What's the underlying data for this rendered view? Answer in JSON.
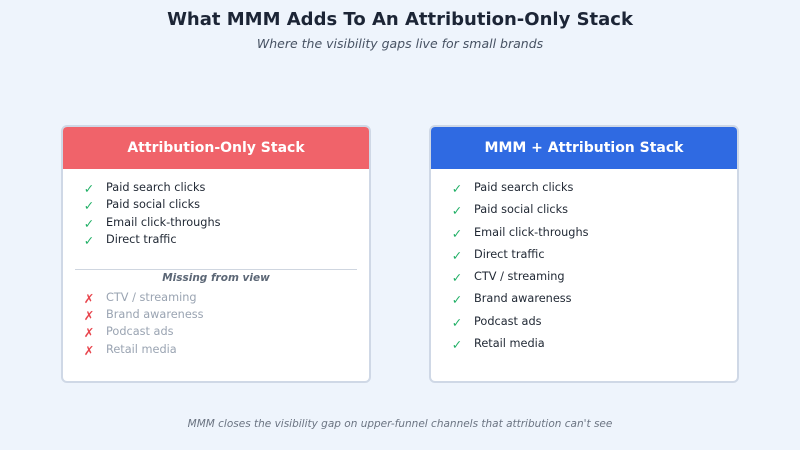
{
  "title": "What MMM Adds To An Attribution-Only Stack",
  "subtitle": "Where the visibility gaps live for small brands",
  "left_card": {
    "header": "Attribution-Only Stack",
    "header_color": "#f0636a",
    "covered": [
      {
        "label": "Paid search clicks",
        "icon": "check-icon"
      },
      {
        "label": "Paid social clicks",
        "icon": "check-icon"
      },
      {
        "label": "Email click-throughs",
        "icon": "check-icon"
      },
      {
        "label": "Direct traffic",
        "icon": "check-icon"
      }
    ],
    "missing_label": "Missing from view",
    "missing": [
      {
        "label": "CTV / streaming",
        "icon": "cross-icon"
      },
      {
        "label": "Brand awareness",
        "icon": "cross-icon"
      },
      {
        "label": "Podcast ads",
        "icon": "cross-icon"
      },
      {
        "label": "Retail media",
        "icon": "cross-icon"
      }
    ]
  },
  "right_card": {
    "header": "MMM + Attribution Stack",
    "header_color": "#2f6ae2",
    "covered": [
      {
        "label": "Paid search clicks",
        "icon": "check-icon"
      },
      {
        "label": "Paid social clicks",
        "icon": "check-icon"
      },
      {
        "label": "Email click-throughs",
        "icon": "check-icon"
      },
      {
        "label": "Direct traffic",
        "icon": "check-icon"
      },
      {
        "label": "CTV / streaming",
        "icon": "check-icon"
      },
      {
        "label": "Brand awareness",
        "icon": "check-icon"
      },
      {
        "label": "Podcast ads",
        "icon": "check-icon"
      },
      {
        "label": "Retail media",
        "icon": "check-icon"
      }
    ]
  },
  "glyphs": {
    "check": "✓",
    "cross": "✗"
  },
  "colors": {
    "background": "#eef4fc",
    "check": "#22b067",
    "cross": "#e8454d",
    "muted_text": "#9aa4b2"
  },
  "footer": "MMM closes the visibility gap on upper-funnel channels that attribution can't see"
}
